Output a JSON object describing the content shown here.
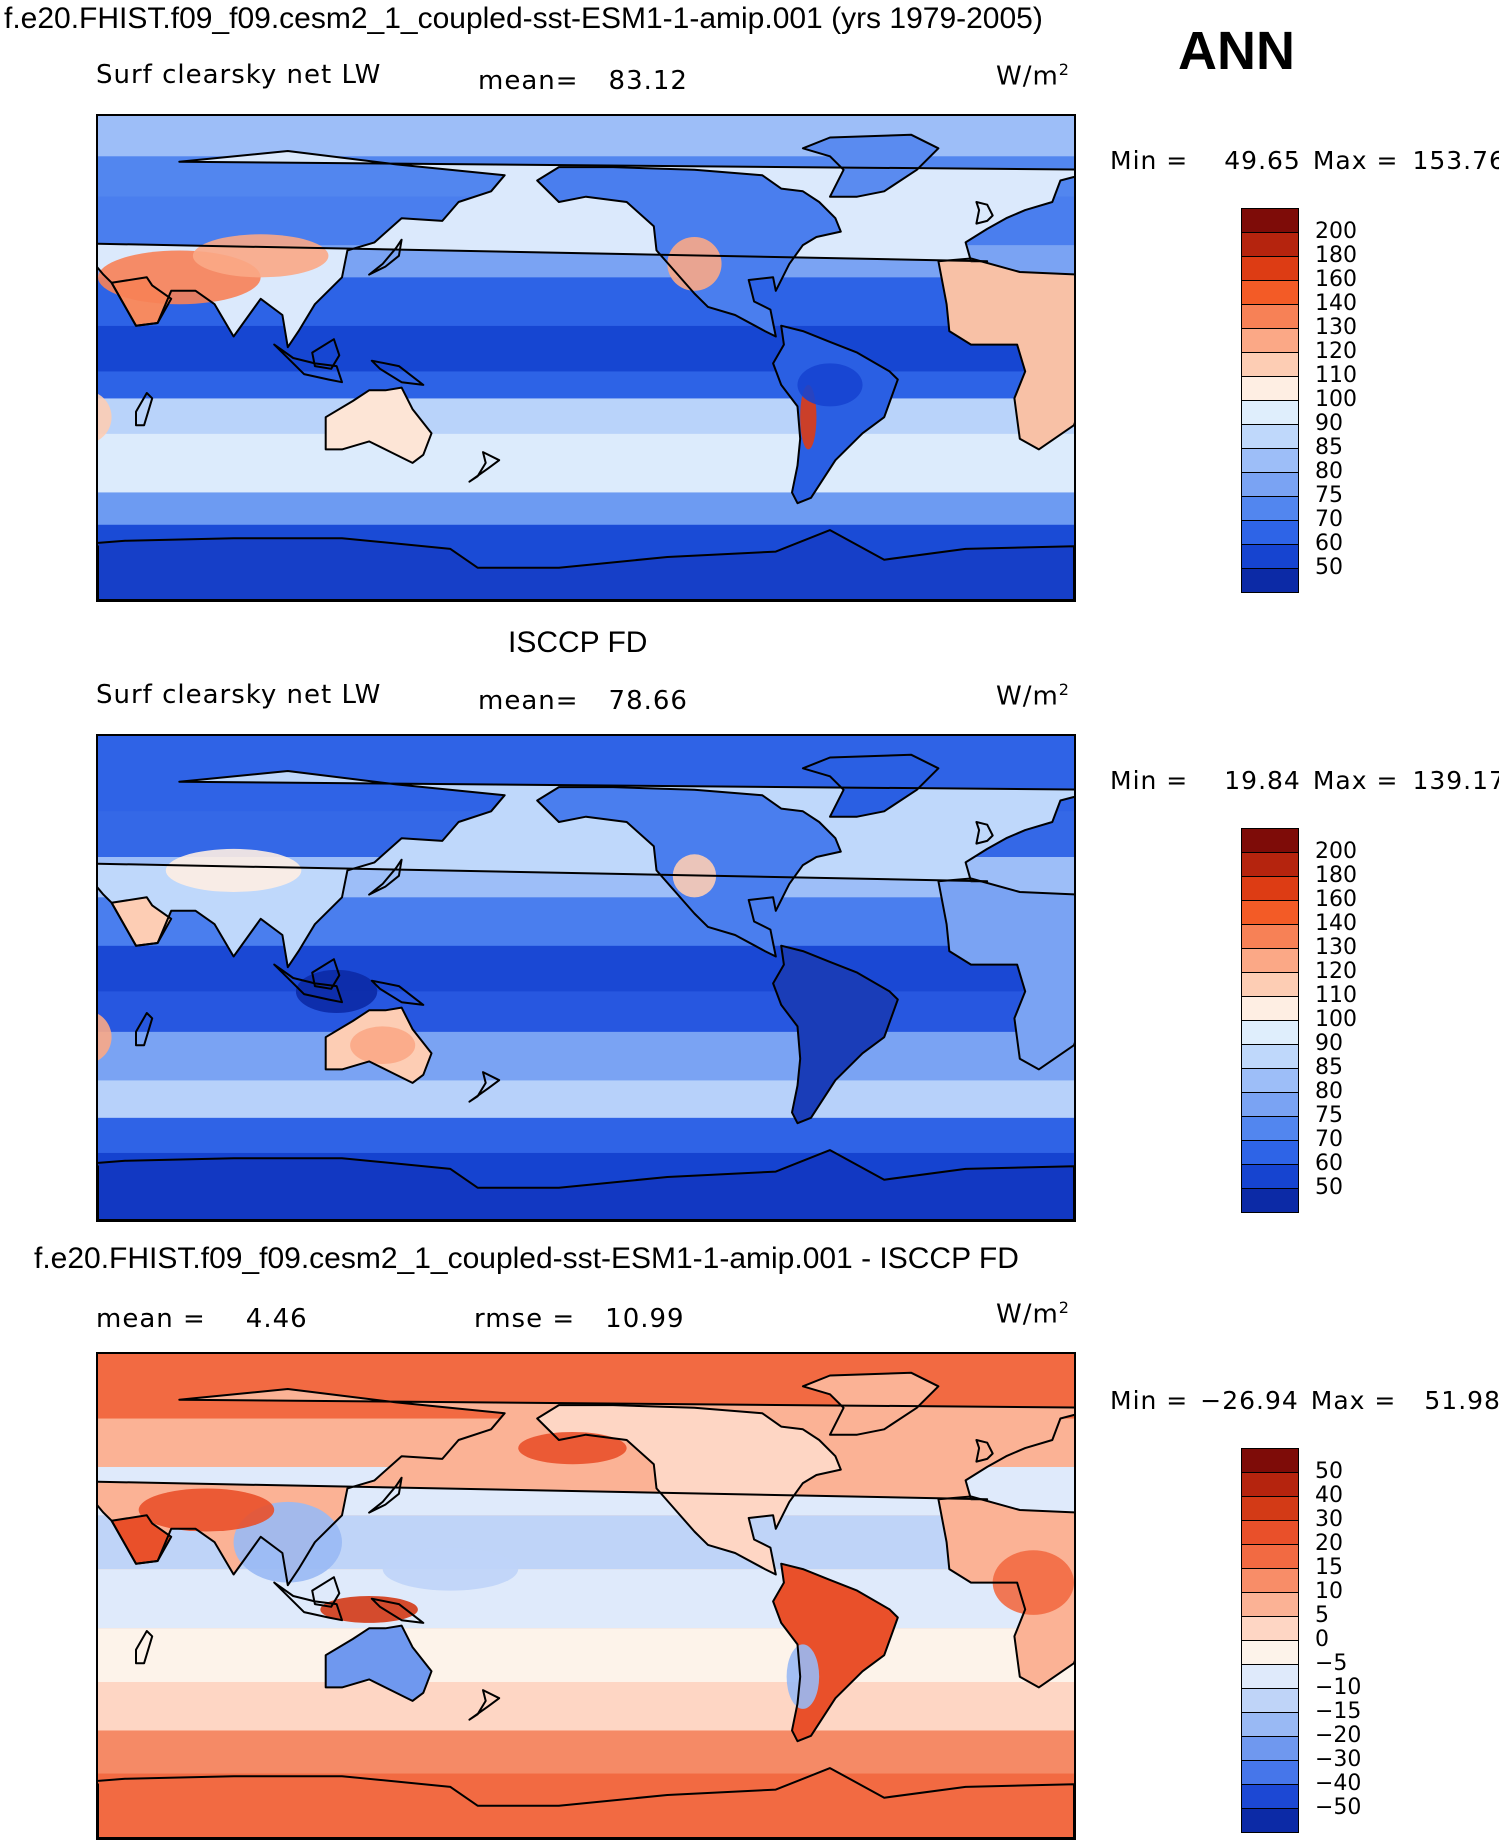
{
  "season": "ANN",
  "units": "W/m",
  "units_exp": "2",
  "panels": [
    {
      "title": "f.e20.FHIST.f09_f09.cesm2_1_coupled-sst-ESM1-1-amip.001 (yrs 1979-2005)",
      "variable": "Surf clearsky net LW",
      "mean_label": "mean=",
      "mean_value": "83.12",
      "min_label": "Min =",
      "min_value": "49.65",
      "max_label": "Max =",
      "max_value": "153.76",
      "levels": [
        "200",
        "180",
        "160",
        "140",
        "130",
        "120",
        "110",
        "100",
        "90",
        "85",
        "80",
        "75",
        "70",
        "60",
        "50"
      ],
      "colors": [
        "#7e0c08",
        "#b5240e",
        "#dd3c14",
        "#f35b26",
        "#f78156",
        "#fba886",
        "#fdcdb4",
        "#feeee3",
        "#dfeefc",
        "#bfd8fb",
        "#9dbef8",
        "#7aa3f3",
        "#5286ef",
        "#2e64e7",
        "#1644d0",
        "#0c2aa6"
      ]
    },
    {
      "title": "ISCCP FD",
      "variable": "Surf clearsky net LW",
      "mean_label": "mean=",
      "mean_value": "78.66",
      "min_label": "Min =",
      "min_value": "19.84",
      "max_label": "Max =",
      "max_value": "139.17",
      "levels": [
        "200",
        "180",
        "160",
        "140",
        "130",
        "120",
        "110",
        "100",
        "90",
        "85",
        "80",
        "75",
        "70",
        "60",
        "50"
      ],
      "colors": [
        "#7e0c08",
        "#b5240e",
        "#dd3c14",
        "#f35b26",
        "#f78156",
        "#fba886",
        "#fdcdb4",
        "#feeee3",
        "#dfeefc",
        "#bfd8fb",
        "#9dbef8",
        "#7aa3f3",
        "#5286ef",
        "#2e64e7",
        "#1644d0",
        "#0c2aa6"
      ]
    },
    {
      "title": "f.e20.FHIST.f09_f09.cesm2_1_coupled-sst-ESM1-1-amip.001 - ISCCP FD",
      "mean_label": "mean =",
      "mean_value": "4.46",
      "rmse_label": "rmse =",
      "rmse_value": "10.99",
      "min_label": "Min =",
      "min_value": "−26.94",
      "max_label": "Max =",
      "max_value": "51.98",
      "levels": [
        "50",
        "40",
        "30",
        "20",
        "15",
        "10",
        "5",
        "0",
        "−5",
        "−10",
        "−15",
        "−20",
        "−30",
        "−40",
        "−50"
      ],
      "colors": [
        "#7e0c08",
        "#b5240e",
        "#d33a16",
        "#e9502a",
        "#f26a42",
        "#f88d68",
        "#fbb295",
        "#fed6c4",
        "#fdf3ea",
        "#dfeafb",
        "#bfd4f8",
        "#99b9f4",
        "#6f98ef",
        "#4676ea",
        "#1c48d4",
        "#0c2aa6"
      ]
    }
  ]
}
